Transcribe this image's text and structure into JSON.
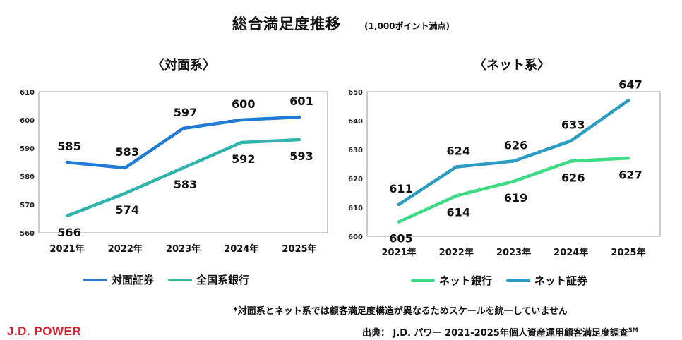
{
  "title": "総合満足度推移",
  "subtitle": "(1,000ポイント満点)",
  "chart_data": [
    {
      "type": "line",
      "title": "〈対面系〉",
      "categories": [
        "2021年",
        "2022年",
        "2023年",
        "2024年",
        "2025年"
      ],
      "ylim": [
        560,
        610
      ],
      "yticks": [
        560,
        570,
        580,
        590,
        600,
        610
      ],
      "series": [
        {
          "name": "対面証券",
          "values": [
            585,
            583,
            597,
            600,
            601
          ],
          "color": "#1f7bd6",
          "labels_above": [
            true,
            true,
            true,
            true,
            true
          ]
        },
        {
          "name": "全国系銀行",
          "values": [
            566,
            574,
            583,
            592,
            593
          ],
          "color": "#2fb3ad",
          "labels_above": [
            false,
            false,
            false,
            false,
            false
          ]
        }
      ]
    },
    {
      "type": "line",
      "title": "〈ネット系〉",
      "categories": [
        "2021年",
        "2022年",
        "2023年",
        "2024年",
        "2025年"
      ],
      "ylim": [
        600,
        650
      ],
      "yticks": [
        600,
        610,
        620,
        630,
        640,
        650
      ],
      "series": [
        {
          "name": "ネット銀行",
          "values": [
            605,
            614,
            619,
            626,
            627
          ],
          "color": "#3ddc84",
          "labels_above": [
            false,
            false,
            false,
            false,
            false
          ]
        },
        {
          "name": "ネット証券",
          "values": [
            611,
            624,
            626,
            633,
            647
          ],
          "color": "#2a9cc2",
          "labels_above": [
            true,
            true,
            true,
            true,
            true
          ]
        }
      ]
    }
  ],
  "footnote": "*対面系とネット系では顧客満足度構造が異なるためスケールを統一していません",
  "logo": "J.D. POWER",
  "source": "出典：  J.D. パワー 2021-2025年個人資産運用顧客満足度調査",
  "source_mark": "SM"
}
